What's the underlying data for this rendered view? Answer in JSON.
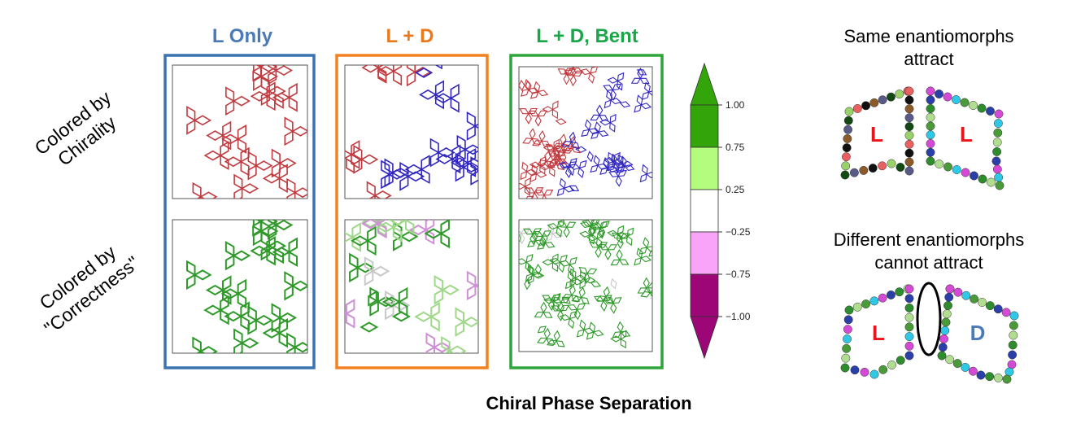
{
  "columns": [
    {
      "title": "L Only",
      "color": "#4a7ab8",
      "frame": "#3a73b0"
    },
    {
      "title": "L + D",
      "color": "#ec7a1c",
      "frame": "#f0831f"
    },
    {
      "title": "L + D, Bent",
      "color": "#1aa648",
      "frame": "#2ea43a"
    }
  ],
  "row_labels": [
    {
      "line1": "Colored by",
      "line2": "Chirality"
    },
    {
      "line1": "Colored by",
      "line2": "\"Correctness\""
    }
  ],
  "caption": "Chiral Phase Separation",
  "colorbar": {
    "ticks": [
      "1.00",
      "0.75",
      "0.25",
      "−0.25",
      "−0.75",
      "−1.00"
    ],
    "colors": [
      "#33a50a",
      "#b4fc7e",
      "#ffffff",
      "#f9a4f8",
      "#9c0677"
    ]
  },
  "legend": {
    "same_line1": "Same enantiomorphs",
    "same_line2": "attract",
    "diff_line1": "Different enantiomorphs",
    "diff_line2": "cannot attract",
    "label_L": "L",
    "label_D": "D",
    "L_color": "#e8141a",
    "D_color": "#4a7ab8"
  },
  "colors": {
    "red": "#c03a3f",
    "blue": "#3126c2",
    "green": "#2f9a2a",
    "lightgreen": "#9fd88a",
    "pink": "#cf8fd6",
    "gray": "#c8c8c8"
  }
}
